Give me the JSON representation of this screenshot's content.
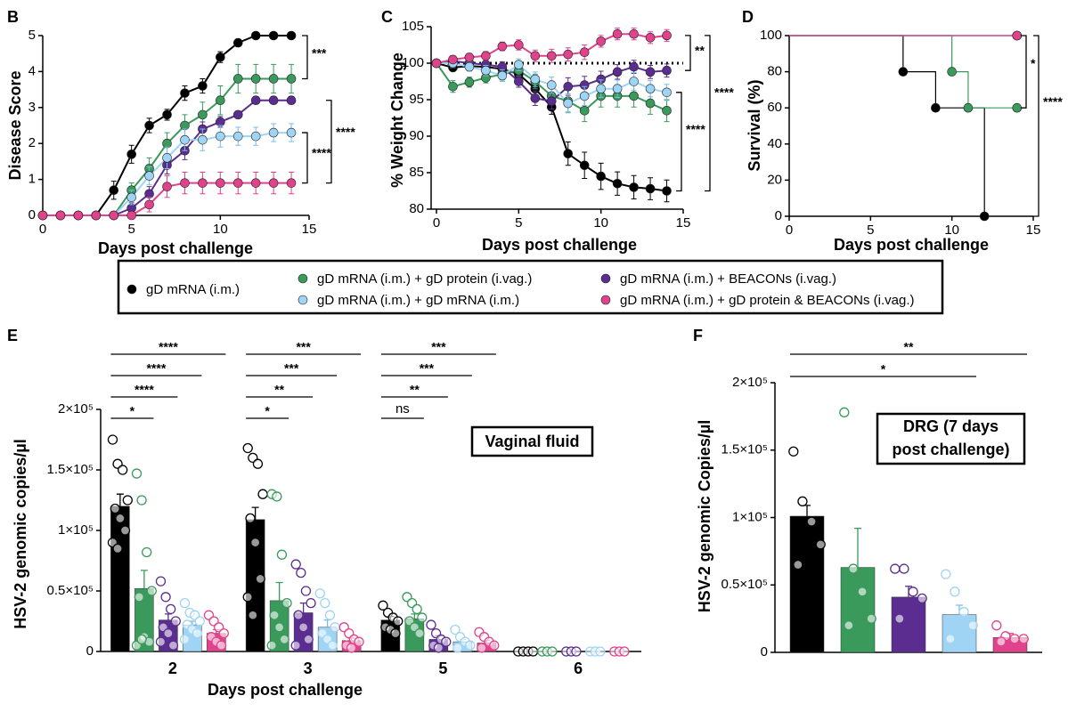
{
  "chart_data": [
    {
      "type": "line",
      "panel": "B",
      "ylabel": "Disease Score",
      "xlabel": "Days post challenge",
      "x": [
        0,
        1,
        2,
        3,
        4,
        5,
        6,
        7,
        8,
        9,
        10,
        11,
        12,
        13,
        14
      ],
      "xlim": [
        0,
        15
      ],
      "xticks": [
        0,
        5,
        10,
        15
      ],
      "ylim": [
        0,
        5
      ],
      "yticks": [
        0,
        1,
        2,
        3,
        4,
        5
      ],
      "series": [
        {
          "name": "gD mRNA (i.m.)",
          "color": "#000000",
          "values": [
            0,
            0,
            0,
            0,
            0.7,
            1.7,
            2.5,
            2.8,
            3.4,
            3.6,
            4.4,
            4.8,
            5,
            5,
            5
          ],
          "errors": [
            0,
            0,
            0,
            0,
            0.25,
            0.25,
            0.2,
            0.15,
            0.2,
            0.2,
            0.15,
            0.1,
            0,
            0,
            0
          ]
        },
        {
          "name": "gD mRNA (i.m.) + gD protein (i.vag.)",
          "color": "#3a9a5b",
          "values": [
            0,
            0,
            0,
            0,
            0,
            0.7,
            1.3,
            2.0,
            2.5,
            2.8,
            3.2,
            3.8,
            3.8,
            3.8,
            3.8
          ],
          "errors": [
            0,
            0,
            0,
            0,
            0,
            0.2,
            0.3,
            0.3,
            0.3,
            0.35,
            0.4,
            0.4,
            0.4,
            0.4,
            0.4
          ]
        },
        {
          "name": "gD mRNA (i.m.) + BEACONs (i.vag.)",
          "color": "#5b2d90",
          "values": [
            0,
            0,
            0,
            0,
            0,
            0.2,
            0.6,
            1.4,
            1.8,
            2.4,
            2.6,
            2.8,
            3.2,
            3.2,
            3.2
          ],
          "errors": [
            0,
            0,
            0,
            0,
            0,
            0.15,
            0.2,
            0.25,
            0.25,
            0.2,
            0.15,
            0.1,
            0.1,
            0.1,
            0.1
          ]
        },
        {
          "name": "gD mRNA (i.m.) + gD mRNA (i.m.)",
          "color": "#9fd4f5",
          "values": [
            0,
            0,
            0,
            0,
            0,
            0.5,
            1.1,
            1.6,
            2.1,
            2.1,
            2.2,
            2.2,
            2.2,
            2.3,
            2.3
          ],
          "errors": [
            0,
            0,
            0,
            0,
            0,
            0.2,
            0.25,
            0.3,
            0.3,
            0.3,
            0.3,
            0.25,
            0.25,
            0.25,
            0.25
          ]
        },
        {
          "name": "gD mRNA (i.m.) + gD protein & BEACONs (i.vag.)",
          "color": "#e0438c",
          "values": [
            0,
            0,
            0,
            0,
            0,
            0,
            0.3,
            0.8,
            0.9,
            0.9,
            0.9,
            0.9,
            0.9,
            0.9,
            0.9
          ],
          "errors": [
            0,
            0,
            0,
            0,
            0,
            0,
            0.2,
            0.3,
            0.3,
            0.3,
            0.3,
            0.3,
            0.3,
            0.3,
            0.3
          ]
        }
      ],
      "significance": [
        {
          "pair": [
            0,
            1
          ],
          "label": "***"
        },
        {
          "pair": [
            3,
            4
          ],
          "label": "****"
        },
        {
          "pair": [
            2,
            4
          ],
          "label": "****"
        }
      ]
    },
    {
      "type": "line",
      "panel": "C",
      "ylabel": "% Weight Change",
      "xlabel": "Days post challenge",
      "x": [
        0,
        1,
        2,
        3,
        4,
        5,
        6,
        7,
        8,
        9,
        10,
        11,
        12,
        13,
        14
      ],
      "xlim": [
        0,
        15
      ],
      "xticks": [
        0,
        5,
        10,
        15
      ],
      "ylim": [
        80,
        105
      ],
      "yticks": [
        80,
        85,
        90,
        95,
        100,
        105
      ],
      "reference_line": 100,
      "series": [
        {
          "color": "#000000",
          "values": [
            100,
            99.4,
            99.6,
            99.5,
            99.2,
            98.5,
            96.5,
            94,
            87.6,
            86,
            84.5,
            83.5,
            83,
            82.8,
            82.5
          ],
          "errors": [
            0,
            0.5,
            0.5,
            0.5,
            0.6,
            0.8,
            1,
            1,
            1.6,
            1.8,
            1.8,
            1.6,
            1.6,
            1.5,
            1.5
          ]
        },
        {
          "color": "#3a9a5b",
          "values": [
            100,
            96.8,
            97.4,
            98,
            98.5,
            99,
            97.5,
            95.5,
            94.8,
            93.5,
            95.5,
            95.5,
            95.5,
            94.5,
            93.5
          ],
          "errors": [
            0,
            0.8,
            0.7,
            0.7,
            0.8,
            0.8,
            1,
            1.2,
            1.5,
            1.5,
            1.5,
            1.5,
            1.5,
            1.5,
            1.5
          ]
        },
        {
          "color": "#5b2d90",
          "values": [
            100,
            100.3,
            100,
            99.8,
            99.5,
            97.5,
            95.2,
            94.8,
            96.8,
            97,
            97.8,
            98.8,
            99.5,
            98.8,
            99
          ],
          "errors": [
            0,
            0.5,
            0.5,
            0.6,
            0.7,
            0.8,
            1,
            1.1,
            1.2,
            1.2,
            1.1,
            1,
            0.9,
            0.9,
            0.9
          ]
        },
        {
          "color": "#9fd4f5",
          "values": [
            100,
            100,
            99.5,
            99,
            98.3,
            99.8,
            97.8,
            97,
            94.5,
            95.5,
            96.5,
            96.5,
            97.5,
            96.5,
            96
          ],
          "errors": [
            0,
            0.6,
            0.6,
            0.7,
            0.8,
            0.8,
            1,
            1.1,
            1.3,
            1.3,
            1.2,
            1.2,
            1.2,
            1.1,
            1.1
          ]
        },
        {
          "color": "#e0438c",
          "values": [
            100,
            100.5,
            100.8,
            101,
            102.3,
            102.5,
            101,
            101,
            101.2,
            101.5,
            103,
            104,
            104,
            103.5,
            103.8
          ],
          "errors": [
            0,
            0.5,
            0.5,
            0.6,
            0.6,
            0.7,
            0.8,
            0.9,
            0.9,
            1,
            0.8,
            0.8,
            0.8,
            0.8,
            0.8
          ]
        }
      ],
      "significance": [
        {
          "pair": [
            4,
            2
          ],
          "label": "**"
        },
        {
          "pair": [
            3,
            0
          ],
          "label": "****"
        },
        {
          "pair": [
            4,
            0
          ],
          "label": "****"
        }
      ]
    },
    {
      "type": "step",
      "panel": "D",
      "ylabel": "Survival (%)",
      "xlabel": "Days post challenge",
      "xlim": [
        0,
        15
      ],
      "xticks": [
        0,
        5,
        10,
        15
      ],
      "ylim": [
        0,
        100
      ],
      "yticks": [
        0,
        20,
        40,
        60,
        80,
        100
      ],
      "series": [
        {
          "color": "#000000",
          "x": [
            0,
            7,
            9,
            12
          ],
          "values": [
            100,
            80,
            60,
            0
          ]
        },
        {
          "color": "#3a9a5b",
          "x": [
            0,
            10,
            11,
            14
          ],
          "values": [
            100,
            80,
            60,
            60
          ]
        },
        {
          "color": "#5b2d90",
          "x": [
            0,
            14
          ],
          "values": [
            100,
            100
          ]
        },
        {
          "color": "#5aa9e6",
          "x": [
            0,
            14
          ],
          "values": [
            100,
            100
          ]
        },
        {
          "color": "#e0438c",
          "x": [
            0,
            14
          ],
          "values": [
            100,
            100
          ]
        }
      ],
      "significance": [
        {
          "pair": [
            4,
            1
          ],
          "label": "*"
        },
        {
          "pair": [
            4,
            0
          ],
          "label": "****"
        }
      ]
    },
    {
      "type": "bar",
      "panel": "E",
      "ylabel": "HSV-2 genomic copies/µl",
      "xlabel": "Days post challenge",
      "annotation": "Vaginal fluid",
      "categories": [
        "2",
        "3",
        "5",
        "6"
      ],
      "ylim": [
        0,
        200000
      ],
      "yticks": [
        0,
        {
          "value": 50000,
          "label": "0.5×10⁵"
        },
        {
          "value": 100000,
          "label": "1×10⁵"
        },
        {
          "value": 150000,
          "label": "1.5×10⁵"
        },
        {
          "value": 200000,
          "label": "2×10⁵"
        }
      ],
      "series": [
        {
          "color": "#000000",
          "values": [
            120000,
            109000,
            26000,
            0
          ],
          "errors": [
            10000,
            10000,
            3000,
            0
          ],
          "points": [
            [
              175000,
              155000,
              150000,
              125000,
              118000,
              110000,
              100000,
              90000,
              85000
            ],
            [
              168000,
              160000,
              155000,
              130000,
              110000,
              90000,
              60000,
              45000,
              30000
            ],
            [
              38000,
              32000,
              28000,
              25000,
              20000,
              18000,
              15000
            ],
            [
              0,
              0,
              0,
              0
            ]
          ]
        },
        {
          "color": "#3a9a5b",
          "values": [
            52000,
            42000,
            27000,
            0
          ],
          "errors": [
            15000,
            15000,
            4000,
            0
          ],
          "points": [
            [
              147000,
              125000,
              82000,
              50000,
              45000,
              12000,
              8000,
              5000,
              10000
            ],
            [
              130000,
              128000,
              80000,
              40000,
              30000,
              20000,
              10000,
              5000
            ],
            [
              45000,
              40000,
              35000,
              28000,
              25000,
              20000,
              15000
            ],
            [
              0,
              0,
              0
            ]
          ]
        },
        {
          "color": "#5b2d90",
          "values": [
            26000,
            32000,
            10000,
            0
          ],
          "errors": [
            5000,
            8000,
            3000,
            0
          ],
          "points": [
            [
              58000,
              45000,
              35000,
              25000,
              20000,
              15000,
              5000,
              8000
            ],
            [
              72000,
              65000,
              50000,
              40000,
              30000,
              20000,
              10000,
              5000
            ],
            [
              22000,
              15000,
              10000,
              8000,
              5000,
              3000
            ],
            [
              0,
              0,
              0
            ]
          ]
        },
        {
          "color": "#9fd4f5",
          "values": [
            22000,
            20000,
            8000,
            0
          ],
          "errors": [
            3000,
            6000,
            2000,
            0
          ],
          "points": [
            [
              40000,
              32000,
              30000,
              25000,
              22000,
              18000,
              15000,
              10000
            ],
            [
              48000,
              40000,
              30000,
              20000,
              15000,
              10000,
              5000
            ],
            [
              18000,
              12000,
              8000,
              5000,
              3000
            ],
            [
              0,
              0,
              0
            ]
          ]
        },
        {
          "color": "#e0438c",
          "values": [
            15000,
            9000,
            7000,
            0
          ],
          "errors": [
            3000,
            2000,
            2000,
            0
          ],
          "points": [
            [
              30000,
              25000,
              20000,
              15000,
              12000,
              8000,
              5000
            ],
            [
              20000,
              15000,
              10000,
              8000,
              5000,
              3000
            ],
            [
              16000,
              12000,
              8000,
              5000,
              3000
            ],
            [
              0,
              0,
              0
            ]
          ]
        }
      ],
      "significance": [
        {
          "category": 0,
          "pair": [
            0,
            1
          ],
          "label": "*"
        },
        {
          "category": 0,
          "pair": [
            0,
            2
          ],
          "label": "****"
        },
        {
          "category": 0,
          "pair": [
            0,
            3
          ],
          "label": "****"
        },
        {
          "category": 0,
          "pair": [
            0,
            4
          ],
          "label": "****"
        },
        {
          "category": 1,
          "pair": [
            0,
            1
          ],
          "label": "*"
        },
        {
          "category": 1,
          "pair": [
            0,
            2
          ],
          "label": "**"
        },
        {
          "category": 1,
          "pair": [
            0,
            3
          ],
          "label": "***"
        },
        {
          "category": 1,
          "pair": [
            0,
            4
          ],
          "label": "***"
        },
        {
          "category": 2,
          "pair": [
            0,
            1
          ],
          "label": "ns"
        },
        {
          "category": 2,
          "pair": [
            0,
            2
          ],
          "label": "**"
        },
        {
          "category": 2,
          "pair": [
            0,
            3
          ],
          "label": "***"
        },
        {
          "category": 2,
          "pair": [
            0,
            4
          ],
          "label": "***"
        }
      ]
    },
    {
      "type": "bar",
      "panel": "F",
      "ylabel": "HSV-2 genomic Copies/µl",
      "annotation": [
        "DRG (7 days",
        "post challenge)"
      ],
      "ylim": [
        0,
        200000
      ],
      "yticks": [
        0,
        {
          "value": 50000,
          "label": "0.5×10⁵"
        },
        {
          "value": 100000,
          "label": "1×10⁵"
        },
        {
          "value": 150000,
          "label": "1.5×10⁵"
        },
        {
          "value": 200000,
          "label": "2×10⁵"
        }
      ],
      "series": [
        {
          "color": "#000000",
          "values": [
            101000
          ],
          "errors": [
            8000
          ],
          "points": [
            [
              149000,
              112000,
              97000,
              80000,
              65000
            ]
          ]
        },
        {
          "color": "#3a9a5b",
          "values": [
            63000
          ],
          "errors": [
            29000
          ],
          "points": [
            [
              178000,
              62000,
              45000,
              25000,
              20000
            ]
          ]
        },
        {
          "color": "#5b2d90",
          "values": [
            41000
          ],
          "errors": [
            8000
          ],
          "points": [
            [
              62000,
              62000,
              45000,
              40000,
              25000
            ]
          ]
        },
        {
          "color": "#9fd4f5",
          "values": [
            28000
          ],
          "errors": [
            7000
          ],
          "points": [
            [
              58000,
              45000,
              30000,
              20000,
              10000
            ]
          ]
        },
        {
          "color": "#e0438c",
          "values": [
            11000
          ],
          "errors": [
            3000
          ],
          "points": [
            [
              20000,
              12000,
              10000,
              10000,
              8000
            ]
          ]
        }
      ],
      "significance": [
        {
          "category": 0,
          "pair": [
            0,
            3
          ],
          "label": "*"
        },
        {
          "category": 0,
          "pair": [
            0,
            4
          ],
          "label": "**"
        }
      ]
    }
  ]
}
